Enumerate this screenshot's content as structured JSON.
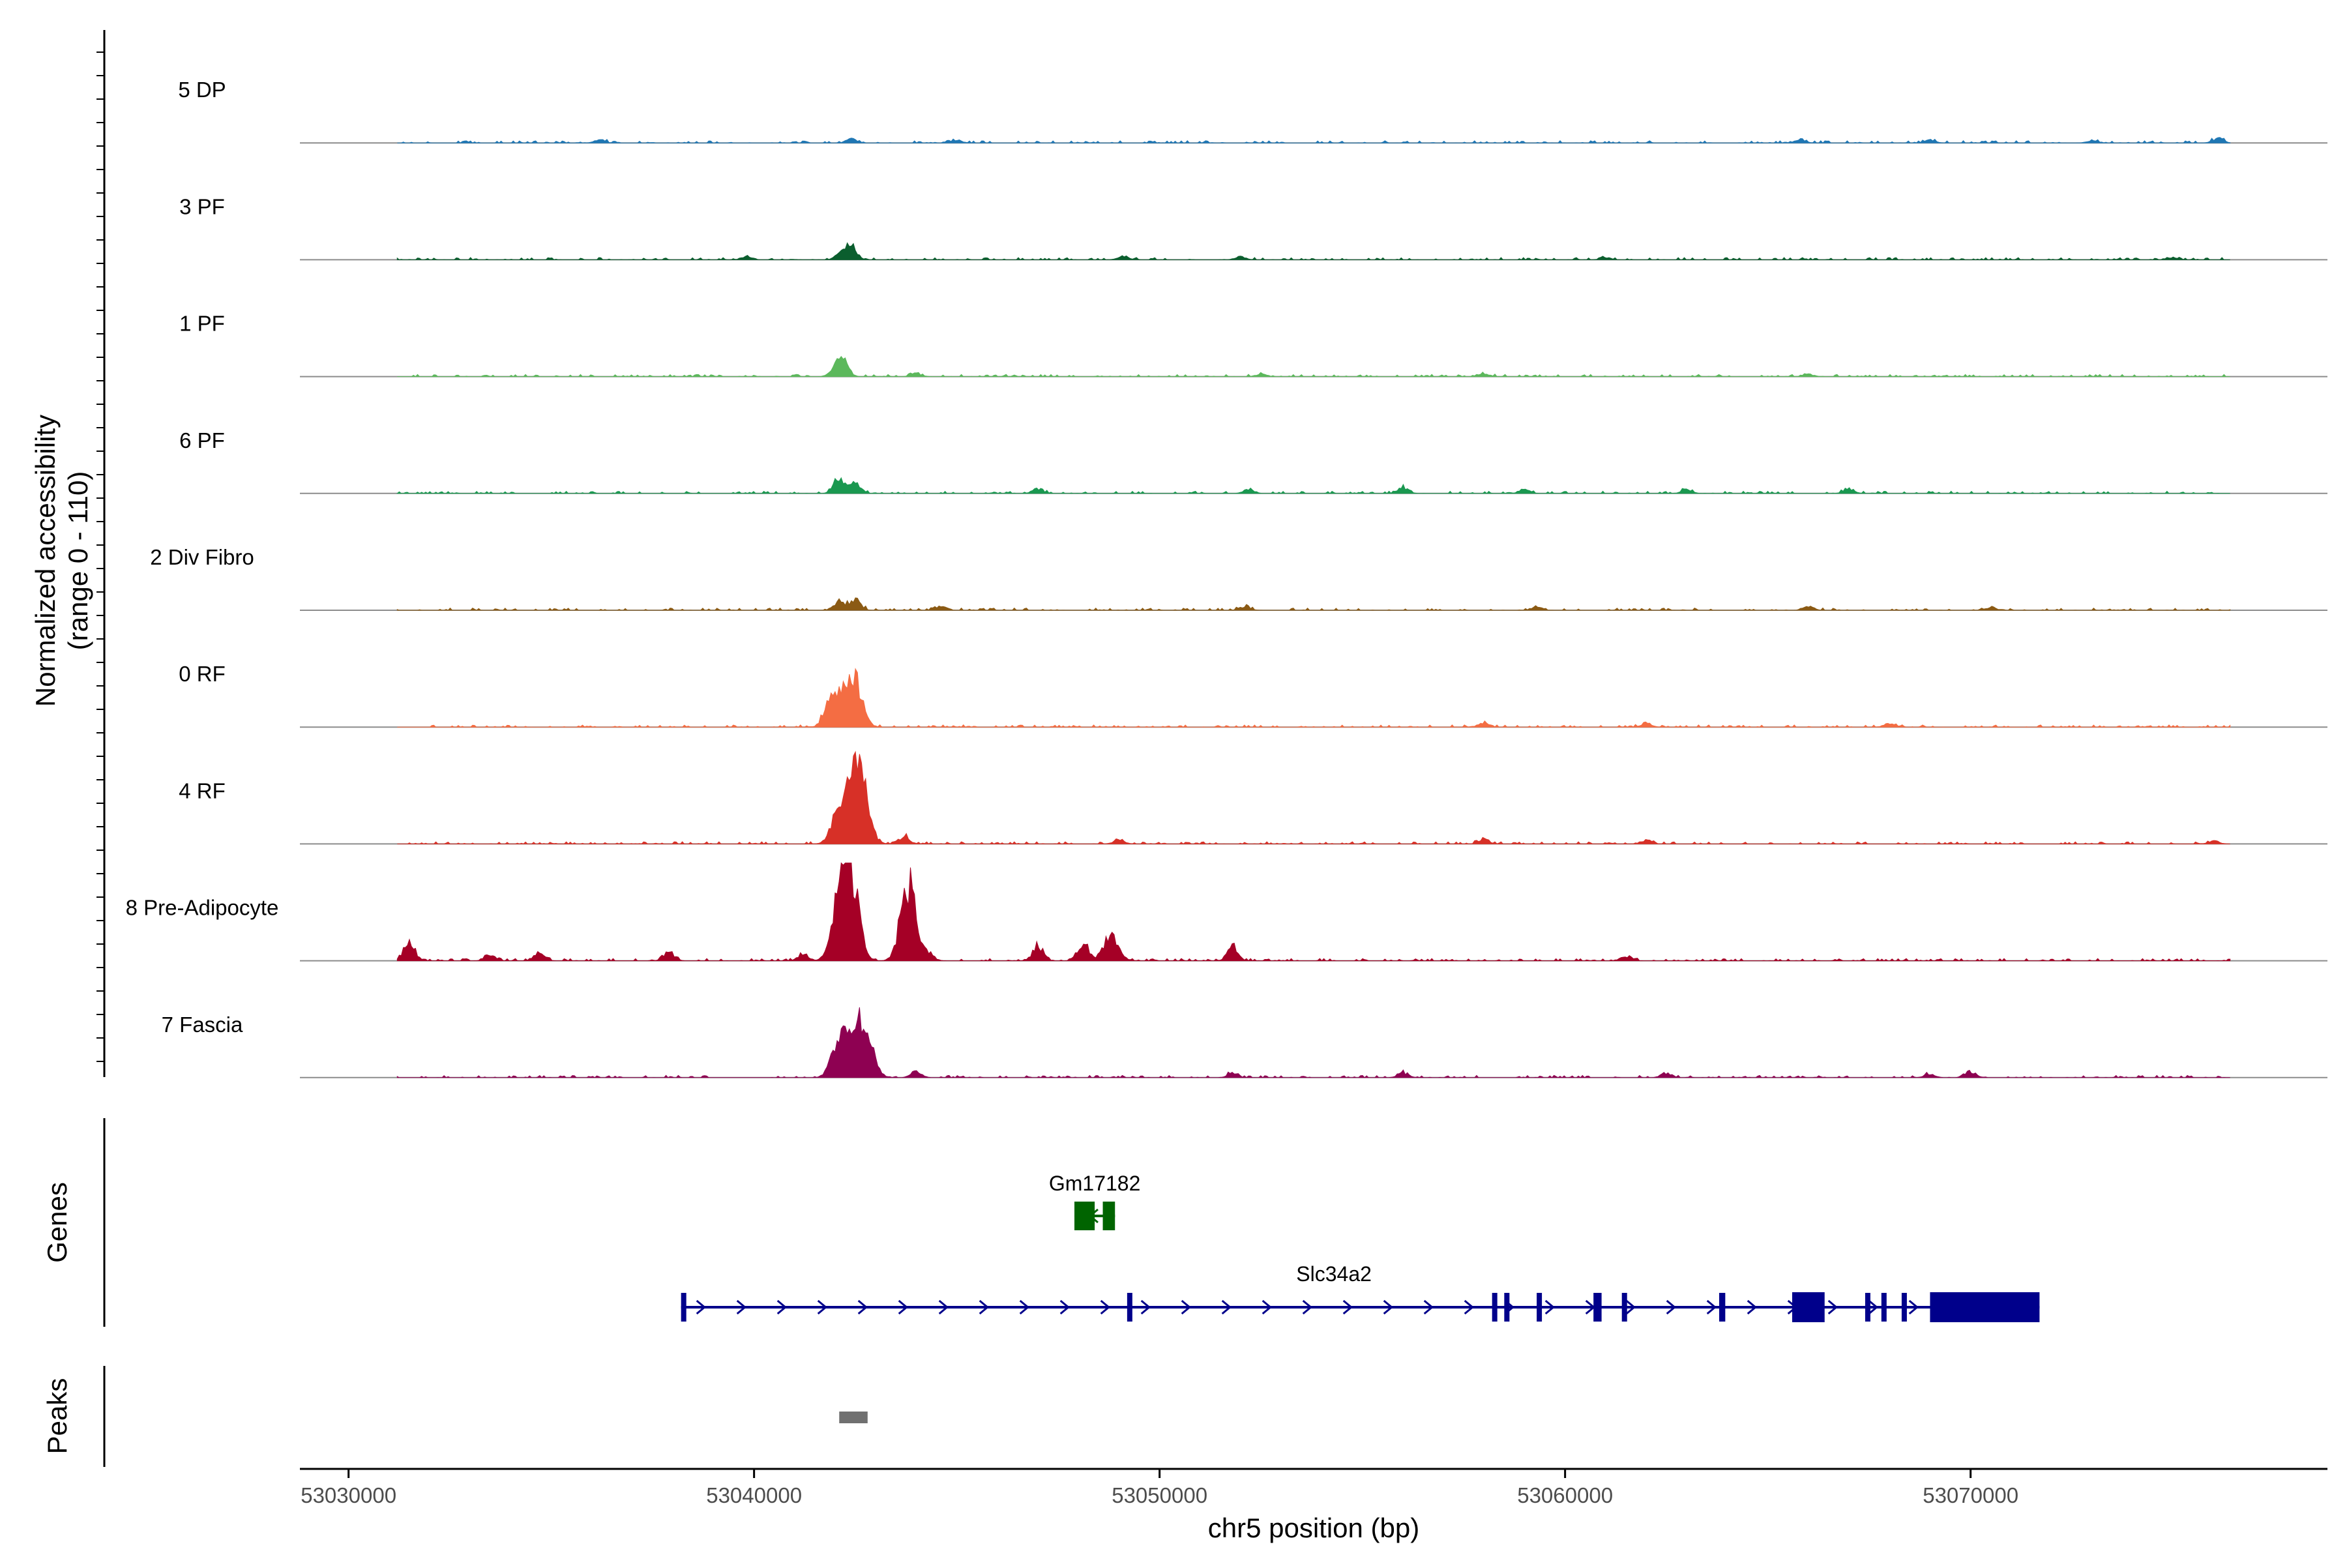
{
  "chart_data": {
    "type": "area",
    "title": "",
    "ylabel": [
      "Normalized accessibility",
      "(range 0 - 110)"
    ],
    "xlabel": "chr5 position (bp)",
    "xlim": [
      53028800,
      53078800
    ],
    "ylim": [
      0,
      110
    ],
    "x_ticks": [
      53030000,
      53040000,
      53050000,
      53060000,
      53070000
    ],
    "x_tick_labels": [
      "53030000",
      "53040000",
      "53050000",
      "53060000",
      "53070000"
    ],
    "grid": false,
    "tracks": [
      {
        "name": "5 DP",
        "color": "#1f77b4",
        "peaks": [
          [
            53036200,
            4
          ],
          [
            53042400,
            5
          ],
          [
            53045000,
            3
          ],
          [
            53065800,
            5
          ],
          [
            53069000,
            4
          ],
          [
            53073000,
            3
          ],
          [
            53076100,
            6
          ]
        ]
      },
      {
        "name": "3 PF",
        "color": "#0b5e2e",
        "peaks": [
          [
            53042150,
            10
          ],
          [
            53042400,
            18
          ],
          [
            53039800,
            4
          ],
          [
            53049100,
            5
          ],
          [
            53052000,
            4
          ],
          [
            53061000,
            3
          ],
          [
            53075000,
            3
          ]
        ]
      },
      {
        "name": "1 PF",
        "color": "#5cb85c",
        "peaks": [
          [
            53042000,
            10
          ],
          [
            53042200,
            22
          ],
          [
            53044000,
            4
          ],
          [
            53052500,
            3
          ],
          [
            53058000,
            4
          ],
          [
            53066000,
            3
          ]
        ]
      },
      {
        "name": "6 PF",
        "color": "#1a9850",
        "peaks": [
          [
            53042100,
            22
          ],
          [
            53042500,
            14
          ],
          [
            53047000,
            6
          ],
          [
            53052200,
            6
          ],
          [
            53056000,
            7
          ],
          [
            53059000,
            6
          ],
          [
            53063000,
            5
          ],
          [
            53067000,
            5
          ]
        ]
      },
      {
        "name": "2 Div Fibro",
        "color": "#8b5a14",
        "peaks": [
          [
            53042100,
            12
          ],
          [
            53042500,
            16
          ],
          [
            53044600,
            5
          ],
          [
            53052100,
            5
          ],
          [
            53059300,
            5
          ],
          [
            53066000,
            5
          ],
          [
            53070500,
            4
          ]
        ]
      },
      {
        "name": "0 RF",
        "color": "#f46d43",
        "peaks": [
          [
            53042100,
            40
          ],
          [
            53042500,
            60
          ],
          [
            53041800,
            20
          ],
          [
            53058000,
            6
          ],
          [
            53062000,
            5
          ],
          [
            53068000,
            5
          ]
        ]
      },
      {
        "name": "4 RF",
        "color": "#d73027",
        "peaks": [
          [
            53042100,
            48
          ],
          [
            53042500,
            88
          ],
          [
            53042700,
            40
          ],
          [
            53043700,
            10
          ],
          [
            53049000,
            5
          ],
          [
            53058000,
            6
          ],
          [
            53062000,
            5
          ],
          [
            53076000,
            4
          ]
        ]
      },
      {
        "name": "8 Pre-Adipocyte",
        "color": "#a50026",
        "peaks": [
          [
            53031500,
            28
          ],
          [
            53033500,
            8
          ],
          [
            53034700,
            10
          ],
          [
            53037900,
            12
          ],
          [
            53041200,
            8
          ],
          [
            53042100,
            85
          ],
          [
            53042400,
            108
          ],
          [
            53043800,
            100
          ],
          [
            53044300,
            10
          ],
          [
            53047000,
            20
          ],
          [
            53048100,
            24
          ],
          [
            53048800,
            32
          ],
          [
            53051800,
            18
          ],
          [
            53061500,
            6
          ]
        ]
      },
      {
        "name": "7 Fascia",
        "color": "#8e0152",
        "peaks": [
          [
            53042100,
            50
          ],
          [
            53042500,
            65
          ],
          [
            53042800,
            40
          ],
          [
            53044000,
            8
          ],
          [
            53051800,
            6
          ],
          [
            53056000,
            6
          ],
          [
            53062500,
            6
          ],
          [
            53069000,
            5
          ],
          [
            53070000,
            8
          ]
        ]
      }
    ],
    "genes": [
      {
        "name": "Gm17182",
        "color": "#006400",
        "start": 53047900,
        "end": 53048900,
        "strand": "-",
        "exons": [
          [
            53047900,
            53048400
          ],
          [
            53048600,
            53048900
          ]
        ]
      },
      {
        "name": "Slc34a2",
        "color": "#00008b",
        "start": 53038200,
        "end": 53071700,
        "strand": "+",
        "exons": [
          [
            53038200,
            53038300
          ],
          [
            53049200,
            53049250
          ],
          [
            53058200,
            53058300
          ],
          [
            53058500,
            53058600
          ],
          [
            53059300,
            53059400
          ],
          [
            53060700,
            53060900
          ],
          [
            53061400,
            53061500
          ],
          [
            53063800,
            53063950
          ],
          [
            53065600,
            53066400
          ],
          [
            53067400,
            53067500
          ],
          [
            53067800,
            53067900
          ],
          [
            53068300,
            53068400
          ],
          [
            53069000,
            53071700
          ]
        ]
      }
    ],
    "peaks_track": [
      {
        "start": 53042100,
        "end": 53042800,
        "color": "#707070"
      }
    ],
    "panel_labels": {
      "genes": "Genes",
      "peaks": "Peaks"
    }
  }
}
